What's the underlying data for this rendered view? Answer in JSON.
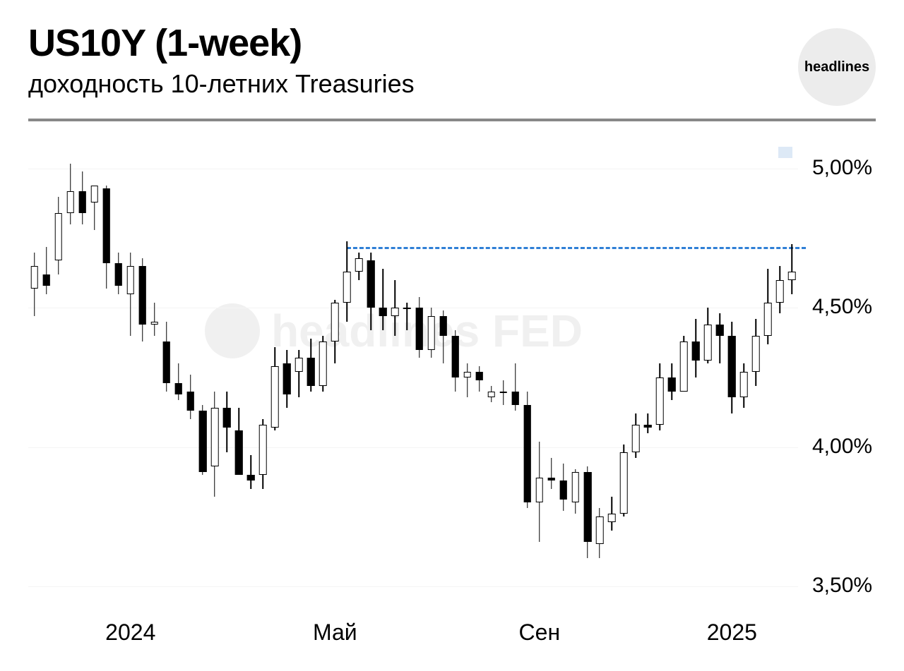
{
  "header": {
    "title": "US10Y (1-week)",
    "subtitle": "доходность 10-летних Treasuries",
    "logo_text": "headlines"
  },
  "watermark": {
    "text": "headlines FED"
  },
  "chart": {
    "type": "candlestick",
    "y_axis": {
      "min": 3.4,
      "max": 5.1,
      "ticks": [
        3.5,
        4.0,
        4.5,
        5.0
      ],
      "labels": [
        "3,50%",
        "4,00%",
        "4,50%",
        "5,00%"
      ],
      "label_fontsize": 30,
      "label_color": "#000000"
    },
    "x_axis": {
      "ticks": [
        8,
        25,
        42,
        58
      ],
      "labels": [
        "2024",
        "Май",
        "Сен",
        "2025"
      ],
      "label_fontsize": 32,
      "label_color": "#000000"
    },
    "grid_color": "#f4f4f4",
    "background_color": "#ffffff",
    "candle_up_color": "#ffffff",
    "candle_down_color": "#000000",
    "candle_border_color": "#000000",
    "wick_color": "#000000",
    "candle_width_ratio": 0.62,
    "candles": [
      {
        "o": 4.57,
        "h": 4.7,
        "l": 4.47,
        "c": 4.65
      },
      {
        "o": 4.62,
        "h": 4.72,
        "l": 4.55,
        "c": 4.58
      },
      {
        "o": 4.67,
        "h": 4.9,
        "l": 4.62,
        "c": 4.84
      },
      {
        "o": 4.84,
        "h": 5.02,
        "l": 4.8,
        "c": 4.92
      },
      {
        "o": 4.92,
        "h": 4.99,
        "l": 4.8,
        "c": 4.84
      },
      {
        "o": 4.88,
        "h": 4.94,
        "l": 4.78,
        "c": 4.94
      },
      {
        "o": 4.93,
        "h": 4.94,
        "l": 4.57,
        "c": 4.66
      },
      {
        "o": 4.66,
        "h": 4.7,
        "l": 4.55,
        "c": 4.58
      },
      {
        "o": 4.55,
        "h": 4.7,
        "l": 4.4,
        "c": 4.65
      },
      {
        "o": 4.65,
        "h": 4.68,
        "l": 4.38,
        "c": 4.44
      },
      {
        "o": 4.44,
        "h": 4.52,
        "l": 4.4,
        "c": 4.45
      },
      {
        "o": 4.38,
        "h": 4.45,
        "l": 4.2,
        "c": 4.23
      },
      {
        "o": 4.23,
        "h": 4.3,
        "l": 4.17,
        "c": 4.19
      },
      {
        "o": 4.2,
        "h": 4.26,
        "l": 4.1,
        "c": 4.13
      },
      {
        "o": 4.13,
        "h": 4.15,
        "l": 3.9,
        "c": 3.91
      },
      {
        "o": 3.93,
        "h": 4.2,
        "l": 3.82,
        "c": 4.14
      },
      {
        "o": 4.14,
        "h": 4.2,
        "l": 3.98,
        "c": 4.07
      },
      {
        "o": 4.06,
        "h": 4.14,
        "l": 3.9,
        "c": 3.9
      },
      {
        "o": 3.9,
        "h": 3.97,
        "l": 3.85,
        "c": 3.88
      },
      {
        "o": 3.9,
        "h": 4.1,
        "l": 3.85,
        "c": 4.08
      },
      {
        "o": 4.07,
        "h": 4.36,
        "l": 4.06,
        "c": 4.29
      },
      {
        "o": 4.3,
        "h": 4.35,
        "l": 4.14,
        "c": 4.19
      },
      {
        "o": 4.27,
        "h": 4.35,
        "l": 4.18,
        "c": 4.32
      },
      {
        "o": 4.32,
        "h": 4.39,
        "l": 4.2,
        "c": 4.22
      },
      {
        "o": 4.22,
        "h": 4.4,
        "l": 4.2,
        "c": 4.38
      },
      {
        "o": 4.38,
        "h": 4.53,
        "l": 4.3,
        "c": 4.52
      },
      {
        "o": 4.52,
        "h": 4.74,
        "l": 4.45,
        "c": 4.63
      },
      {
        "o": 4.63,
        "h": 4.7,
        "l": 4.6,
        "c": 4.68
      },
      {
        "o": 4.67,
        "h": 4.7,
        "l": 4.42,
        "c": 4.5
      },
      {
        "o": 4.5,
        "h": 4.64,
        "l": 4.42,
        "c": 4.47
      },
      {
        "o": 4.47,
        "h": 4.6,
        "l": 4.4,
        "c": 4.5
      },
      {
        "o": 4.5,
        "h": 4.52,
        "l": 4.42,
        "c": 4.5
      },
      {
        "o": 4.5,
        "h": 4.54,
        "l": 4.32,
        "c": 4.35
      },
      {
        "o": 4.35,
        "h": 4.5,
        "l": 4.32,
        "c": 4.47
      },
      {
        "o": 4.47,
        "h": 4.49,
        "l": 4.3,
        "c": 4.4
      },
      {
        "o": 4.4,
        "h": 4.42,
        "l": 4.2,
        "c": 4.25
      },
      {
        "o": 4.25,
        "h": 4.3,
        "l": 4.18,
        "c": 4.27
      },
      {
        "o": 4.27,
        "h": 4.29,
        "l": 4.2,
        "c": 4.24
      },
      {
        "o": 4.18,
        "h": 4.22,
        "l": 4.16,
        "c": 4.2
      },
      {
        "o": 4.2,
        "h": 4.24,
        "l": 4.15,
        "c": 4.2
      },
      {
        "o": 4.2,
        "h": 4.3,
        "l": 4.13,
        "c": 4.15
      },
      {
        "o": 4.15,
        "h": 4.2,
        "l": 3.78,
        "c": 3.8
      },
      {
        "o": 3.8,
        "h": 4.02,
        "l": 3.66,
        "c": 3.89
      },
      {
        "o": 3.89,
        "h": 3.96,
        "l": 3.85,
        "c": 3.88
      },
      {
        "o": 3.88,
        "h": 3.94,
        "l": 3.77,
        "c": 3.81
      },
      {
        "o": 3.8,
        "h": 3.92,
        "l": 3.76,
        "c": 3.91
      },
      {
        "o": 3.91,
        "h": 3.93,
        "l": 3.6,
        "c": 3.66
      },
      {
        "o": 3.65,
        "h": 3.78,
        "l": 3.6,
        "c": 3.75
      },
      {
        "o": 3.73,
        "h": 3.82,
        "l": 3.7,
        "c": 3.76
      },
      {
        "o": 3.76,
        "h": 4.01,
        "l": 3.75,
        "c": 3.98
      },
      {
        "o": 3.98,
        "h": 4.12,
        "l": 3.96,
        "c": 4.08
      },
      {
        "o": 4.08,
        "h": 4.12,
        "l": 4.05,
        "c": 4.07
      },
      {
        "o": 4.08,
        "h": 4.3,
        "l": 4.06,
        "c": 4.25
      },
      {
        "o": 4.25,
        "h": 4.3,
        "l": 4.17,
        "c": 4.2
      },
      {
        "o": 4.2,
        "h": 4.4,
        "l": 4.2,
        "c": 4.38
      },
      {
        "o": 4.38,
        "h": 4.46,
        "l": 4.25,
        "c": 4.31
      },
      {
        "o": 4.31,
        "h": 4.5,
        "l": 4.3,
        "c": 4.44
      },
      {
        "o": 4.44,
        "h": 4.48,
        "l": 4.3,
        "c": 4.4
      },
      {
        "o": 4.4,
        "h": 4.45,
        "l": 4.12,
        "c": 4.18
      },
      {
        "o": 4.18,
        "h": 4.3,
        "l": 4.14,
        "c": 4.27
      },
      {
        "o": 4.27,
        "h": 4.46,
        "l": 4.22,
        "c": 4.4
      },
      {
        "o": 4.4,
        "h": 4.64,
        "l": 4.37,
        "c": 4.52
      },
      {
        "o": 4.52,
        "h": 4.65,
        "l": 4.48,
        "c": 4.6
      },
      {
        "o": 4.6,
        "h": 4.73,
        "l": 4.55,
        "c": 4.63
      }
    ],
    "resistance_line": {
      "value": 4.72,
      "from_index": 26,
      "to_index": 63,
      "color": "#2f7fd6",
      "dash": true,
      "width": 3
    }
  }
}
